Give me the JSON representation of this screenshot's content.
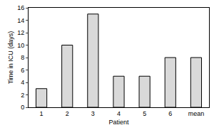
{
  "chart_data": {
    "type": "bar",
    "x_label": "Patient",
    "y_label": "Time in ICU (days)",
    "categories": [
      "1",
      "2",
      "3",
      "4",
      "5",
      "6",
      "mean"
    ],
    "values": [
      3,
      10,
      15,
      5,
      5,
      8,
      8
    ],
    "color": "#d9d9d9",
    "ylim": [
      0,
      16
    ],
    "yticks": [
      0,
      2,
      4,
      6,
      8,
      10,
      12,
      14,
      16
    ],
    "grid": false
  }
}
